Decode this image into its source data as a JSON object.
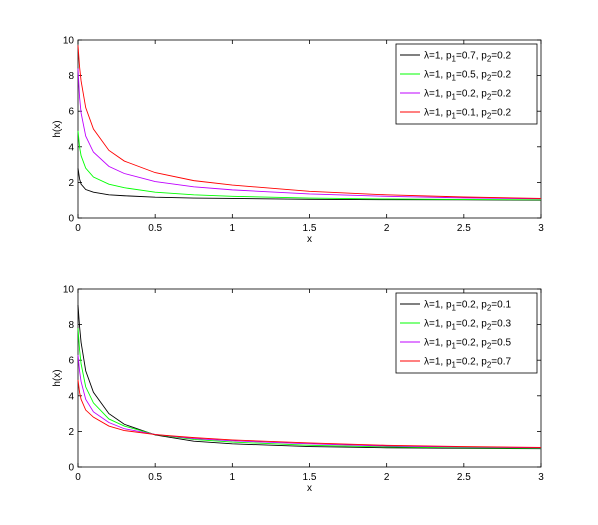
{
  "chart_data": [
    {
      "type": "line",
      "xlabel": "x",
      "ylabel": "h(x)",
      "x": [
        0,
        0.01,
        0.02,
        0.05,
        0.1,
        0.2,
        0.3,
        0.5,
        0.75,
        1,
        1.5,
        2,
        2.5,
        3
      ],
      "xlim": [
        0,
        3
      ],
      "xticks": [
        0,
        0.5,
        1,
        1.5,
        2,
        2.5,
        3
      ],
      "ylim": [
        0,
        10
      ],
      "yticks": [
        0,
        2,
        4,
        6,
        8,
        10
      ],
      "grid": false,
      "legend": "northeast",
      "series": [
        {
          "name": "λ=1, p1=0.7, p2=0.2",
          "color": "#000000",
          "values": [
            2.8,
            2.2,
            1.9,
            1.6,
            1.45,
            1.3,
            1.25,
            1.17,
            1.12,
            1.1,
            1.05,
            1.03,
            1.02,
            1.0
          ]
        },
        {
          "name": "λ=1, p1=0.5, p2=0.2",
          "color": "#00ff00",
          "values": [
            4.9,
            4.0,
            3.5,
            2.8,
            2.3,
            1.9,
            1.7,
            1.45,
            1.3,
            1.22,
            1.12,
            1.07,
            1.04,
            1.02
          ]
        },
        {
          "name": "λ=1, p1=0.2, p2=0.2",
          "color": "#bf00ff",
          "values": [
            8.4,
            6.8,
            5.9,
            4.6,
            3.7,
            2.9,
            2.5,
            2.05,
            1.75,
            1.58,
            1.35,
            1.22,
            1.13,
            1.08
          ]
        },
        {
          "name": "λ=1, p1=0.1, p2=0.2",
          "color": "#ff0000",
          "values": [
            9.7,
            8.5,
            7.7,
            6.2,
            5.0,
            3.8,
            3.2,
            2.55,
            2.1,
            1.85,
            1.5,
            1.3,
            1.18,
            1.1
          ]
        }
      ]
    },
    {
      "type": "line",
      "xlabel": "x",
      "ylabel": "h(x)",
      "x": [
        0,
        0.01,
        0.02,
        0.05,
        0.1,
        0.2,
        0.3,
        0.5,
        0.75,
        1,
        1.5,
        2,
        2.5,
        3
      ],
      "xlim": [
        0,
        3
      ],
      "xticks": [
        0,
        0.5,
        1,
        1.5,
        2,
        2.5,
        3
      ],
      "ylim": [
        0,
        10
      ],
      "yticks": [
        0,
        2,
        4,
        6,
        8,
        10
      ],
      "grid": false,
      "legend": "northeast",
      "series": [
        {
          "name": "λ=1, p1=0.2, p2=0.1",
          "color": "#000000",
          "values": [
            9.1,
            7.9,
            7.0,
            5.4,
            4.2,
            3.0,
            2.4,
            1.8,
            1.45,
            1.3,
            1.15,
            1.08,
            1.05,
            1.03
          ]
        },
        {
          "name": "λ=1, p1=0.2, p2=0.3",
          "color": "#00ff00",
          "values": [
            7.8,
            6.6,
            5.8,
            4.5,
            3.6,
            2.7,
            2.3,
            1.82,
            1.55,
            1.4,
            1.22,
            1.13,
            1.08,
            1.05
          ]
        },
        {
          "name": "λ=1, p1=0.2, p2=0.5",
          "color": "#bf00ff",
          "values": [
            6.3,
            5.4,
            4.8,
            3.8,
            3.1,
            2.5,
            2.15,
            1.83,
            1.6,
            1.47,
            1.3,
            1.18,
            1.12,
            1.08
          ]
        },
        {
          "name": "λ=1, p1=0.2, p2=0.7",
          "color": "#ff0000",
          "values": [
            4.9,
            4.2,
            3.8,
            3.2,
            2.8,
            2.3,
            2.05,
            1.82,
            1.65,
            1.52,
            1.35,
            1.22,
            1.15,
            1.1
          ]
        }
      ]
    }
  ]
}
